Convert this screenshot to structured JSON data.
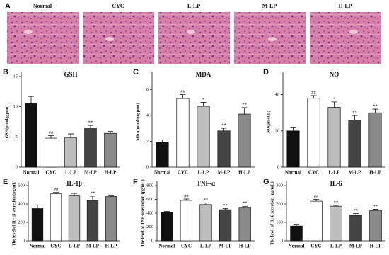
{
  "panel_a": {
    "panel": "A",
    "labels": [
      "Normal",
      "CYC",
      "L-LP",
      "M-LP",
      "H-LP"
    ]
  },
  "chart_data": [
    {
      "type": "bar",
      "panel": "B",
      "title": "GSH",
      "y_label": "GSH(μmol/g prot)",
      "categories": [
        "Normal",
        "CYC",
        "L-LP",
        "M-LP",
        "H-LP"
      ],
      "values": [
        10.5,
        4.8,
        4.9,
        6.5,
        5.6
      ],
      "errors": [
        1.2,
        0.4,
        0.6,
        0.4,
        0.3
      ],
      "annotations": [
        null,
        "##",
        null,
        "**",
        null
      ],
      "colors": [
        "#111111",
        "#ffffff",
        "#bdbdbd",
        "#444444",
        "#8a8a8a"
      ],
      "ylim": [
        0,
        15
      ],
      "yticks": [
        0,
        5,
        10,
        15
      ]
    },
    {
      "type": "bar",
      "panel": "C",
      "title": "MDA",
      "y_label": "MDA(nmol/mg prot)",
      "categories": [
        "Normal",
        "CYC",
        "L-LP",
        "M-LP",
        "H-LP"
      ],
      "values": [
        1.9,
        5.3,
        4.7,
        2.8,
        4.1
      ],
      "errors": [
        0.2,
        0.3,
        0.3,
        0.2,
        0.5
      ],
      "annotations": [
        null,
        "##",
        "*",
        "**",
        "**"
      ],
      "colors": [
        "#111111",
        "#ffffff",
        "#bdbdbd",
        "#444444",
        "#8a8a8a"
      ],
      "ylim": [
        0,
        7
      ],
      "yticks": [
        0,
        2,
        4,
        6
      ]
    },
    {
      "type": "bar",
      "panel": "D",
      "title": "NO",
      "y_label": "NO(μmol/L)",
      "categories": [
        "Normal",
        "CYC",
        "L-LP",
        "M-LP",
        "H-LP"
      ],
      "values": [
        20,
        38,
        33,
        26,
        30
      ],
      "errors": [
        2,
        1.5,
        3,
        2.5,
        2
      ],
      "annotations": [
        null,
        "##",
        "*",
        "**",
        "**"
      ],
      "colors": [
        "#111111",
        "#ffffff",
        "#bdbdbd",
        "#444444",
        "#8a8a8a"
      ],
      "ylim": [
        0,
        50
      ],
      "yticks": [
        0,
        20,
        40
      ]
    },
    {
      "type": "bar",
      "panel": "E",
      "title": "IL-1β",
      "y_label": "The level of IL-1β secretion (pg/mL)",
      "categories": [
        "Normal",
        "CYC",
        "L-LP",
        "M-LP",
        "H-LP"
      ],
      "values": [
        350,
        510,
        495,
        440,
        480
      ],
      "errors": [
        40,
        15,
        20,
        45,
        15
      ],
      "annotations": [
        null,
        "##",
        null,
        "**",
        null
      ],
      "colors": [
        "#111111",
        "#ffffff",
        "#bdbdbd",
        "#444444",
        "#8a8a8a"
      ],
      "ylim": [
        0,
        600
      ],
      "yticks": [
        0,
        200,
        400,
        600
      ]
    },
    {
      "type": "bar",
      "panel": "F",
      "title": "TNF-α",
      "y_label": "The level of TNF-α secretion (pg/mL)",
      "categories": [
        "Normal",
        "CYC",
        "L-LP",
        "M-LP",
        "H-LP"
      ],
      "values": [
        415,
        585,
        525,
        450,
        485
      ],
      "errors": [
        12,
        20,
        25,
        15,
        15
      ],
      "annotations": [
        null,
        "##",
        "**",
        "**",
        "**"
      ],
      "colors": [
        "#111111",
        "#ffffff",
        "#bdbdbd",
        "#444444",
        "#8a8a8a"
      ],
      "ylim": [
        0,
        800
      ],
      "yticks": [
        0,
        200,
        400,
        600,
        800
      ]
    },
    {
      "type": "bar",
      "panel": "G",
      "title": "IL-6",
      "y_label": "The level of IL-6 secretion (pg/mL)",
      "categories": [
        "Normal",
        "CYC",
        "L-LP",
        "M-LP",
        "H-LP"
      ],
      "values": [
        80,
        215,
        188,
        138,
        165
      ],
      "errors": [
        10,
        10,
        5,
        10,
        6
      ],
      "annotations": [
        null,
        "##",
        "**",
        "**",
        "**"
      ],
      "colors": [
        "#111111",
        "#ffffff",
        "#bdbdbd",
        "#444444",
        "#8a8a8a"
      ],
      "ylim": [
        0,
        300
      ],
      "yticks": [
        0,
        100,
        200,
        300
      ]
    }
  ]
}
